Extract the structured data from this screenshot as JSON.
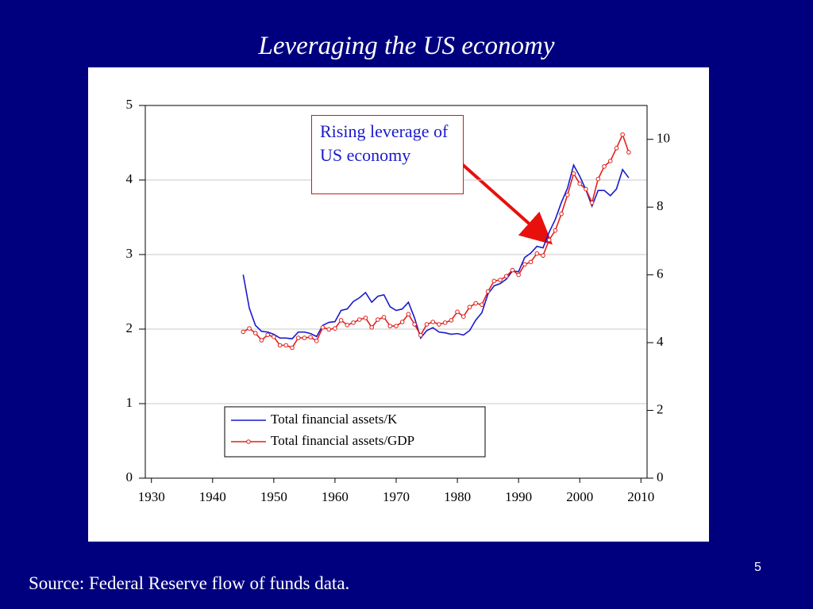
{
  "title": "Leveraging the US economy",
  "source": "Source: Federal Reserve flow of funds data.",
  "page_number": "5",
  "chart_data": {
    "type": "line",
    "x": [
      1945,
      1946,
      1947,
      1948,
      1949,
      1950,
      1951,
      1952,
      1953,
      1954,
      1955,
      1956,
      1957,
      1958,
      1959,
      1960,
      1961,
      1962,
      1963,
      1964,
      1965,
      1966,
      1967,
      1968,
      1969,
      1970,
      1971,
      1972,
      1973,
      1974,
      1975,
      1976,
      1977,
      1978,
      1979,
      1980,
      1981,
      1982,
      1983,
      1984,
      1985,
      1986,
      1987,
      1988,
      1989,
      1990,
      1991,
      1992,
      1993,
      1994,
      1995,
      1996,
      1997,
      1998,
      1999,
      2000,
      2001,
      2002,
      2003,
      2004,
      2005,
      2006,
      2007,
      2008
    ],
    "series": [
      {
        "name": "Total financial assets/K",
        "color": "#1a1acc",
        "axis": "y",
        "marker": false,
        "values": [
          2.73,
          2.28,
          2.05,
          1.97,
          1.96,
          1.93,
          1.88,
          1.88,
          1.87,
          1.96,
          1.96,
          1.94,
          1.9,
          2.05,
          2.09,
          2.1,
          2.25,
          2.27,
          2.37,
          2.42,
          2.49,
          2.36,
          2.44,
          2.46,
          2.3,
          2.25,
          2.27,
          2.36,
          2.15,
          1.88,
          1.98,
          2.02,
          1.96,
          1.95,
          1.93,
          1.94,
          1.92,
          1.98,
          2.12,
          2.22,
          2.47,
          2.58,
          2.61,
          2.67,
          2.78,
          2.77,
          2.96,
          3.02,
          3.11,
          3.09,
          3.3,
          3.47,
          3.7,
          3.89,
          4.2,
          4.05,
          3.87,
          3.65,
          3.86,
          3.86,
          3.79,
          3.88,
          4.14,
          4.03
        ]
      },
      {
        "name": "Total financial assets/GDP",
        "color": "#e0201c",
        "axis": "y2",
        "marker": true,
        "values": [
          4.32,
          4.42,
          4.28,
          4.07,
          4.23,
          4.17,
          3.92,
          3.92,
          3.85,
          4.14,
          4.14,
          4.16,
          4.05,
          4.45,
          4.39,
          4.42,
          4.66,
          4.52,
          4.59,
          4.68,
          4.73,
          4.45,
          4.68,
          4.75,
          4.49,
          4.49,
          4.61,
          4.84,
          4.54,
          4.22,
          4.54,
          4.61,
          4.54,
          4.59,
          4.66,
          4.91,
          4.77,
          5.05,
          5.16,
          5.12,
          5.51,
          5.82,
          5.85,
          5.96,
          6.14,
          6.0,
          6.31,
          6.38,
          6.63,
          6.57,
          7.03,
          7.31,
          7.8,
          8.36,
          8.99,
          8.69,
          8.53,
          8.13,
          8.83,
          9.2,
          9.36,
          9.74,
          10.14,
          9.62
        ]
      }
    ],
    "xlim": [
      1929,
      2011
    ],
    "xticks": [
      1930,
      1940,
      1950,
      1960,
      1970,
      1980,
      1990,
      2000,
      2010
    ],
    "ylim": [
      0,
      5
    ],
    "yticks": [
      0,
      1,
      2,
      3,
      4,
      5
    ],
    "y2lim": [
      0,
      11
    ],
    "y2ticks": [
      0,
      2,
      4,
      6,
      8,
      10
    ],
    "grid": true,
    "legend": "lower-center",
    "annotation": "Rising leverage of US economy"
  }
}
